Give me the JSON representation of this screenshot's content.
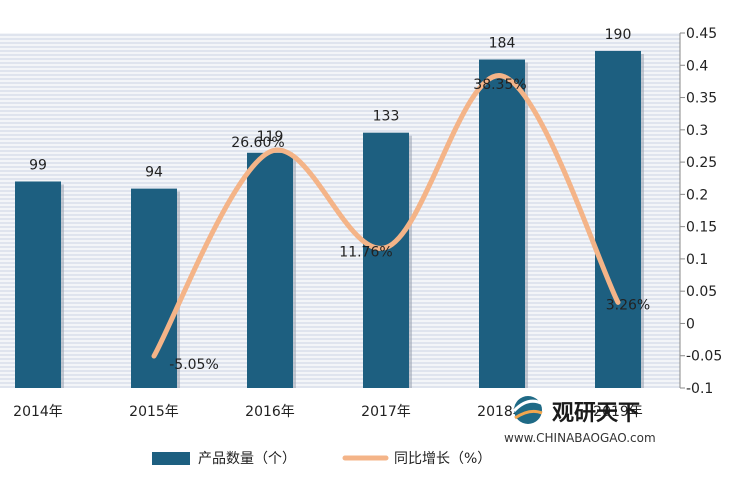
{
  "chart_data": {
    "type": "bar",
    "categories": [
      "2014年",
      "2015年",
      "2016年",
      "2017年",
      "2018年",
      "2019年"
    ],
    "series": [
      {
        "name": "产品数量（个）",
        "kind": "bar",
        "axis": "left",
        "values": [
          99,
          94,
          119,
          133,
          184,
          190
        ],
        "labels": [
          "99",
          "94",
          "119",
          "133",
          "184",
          "190"
        ]
      },
      {
        "name": "同比增长（%）",
        "kind": "line",
        "smooth": true,
        "axis": "right",
        "values": [
          null,
          -0.0505,
          0.266,
          0.1176,
          0.3835,
          0.0326
        ],
        "labels": [
          "",
          "-5.05%",
          "26.60%",
          "11.76%",
          "38.35%",
          "3.26%"
        ]
      }
    ],
    "y2lim": [
      -0.1,
      0.45
    ],
    "y2ticks": [
      "-0.1",
      "-0.05",
      "0",
      "0.05",
      "0.1",
      "0.15",
      "0.2",
      "0.25",
      "0.3",
      "0.35",
      "0.4",
      "0.45"
    ],
    "grid": true,
    "legend": "bottom",
    "colors": {
      "bar": "#1d5f80",
      "line": "#f4b488",
      "background": "#dfe4ee",
      "grid": "#ffffff"
    }
  },
  "watermark": {
    "title": "观研天下",
    "url": "www.CHINABAOGAO.com"
  }
}
